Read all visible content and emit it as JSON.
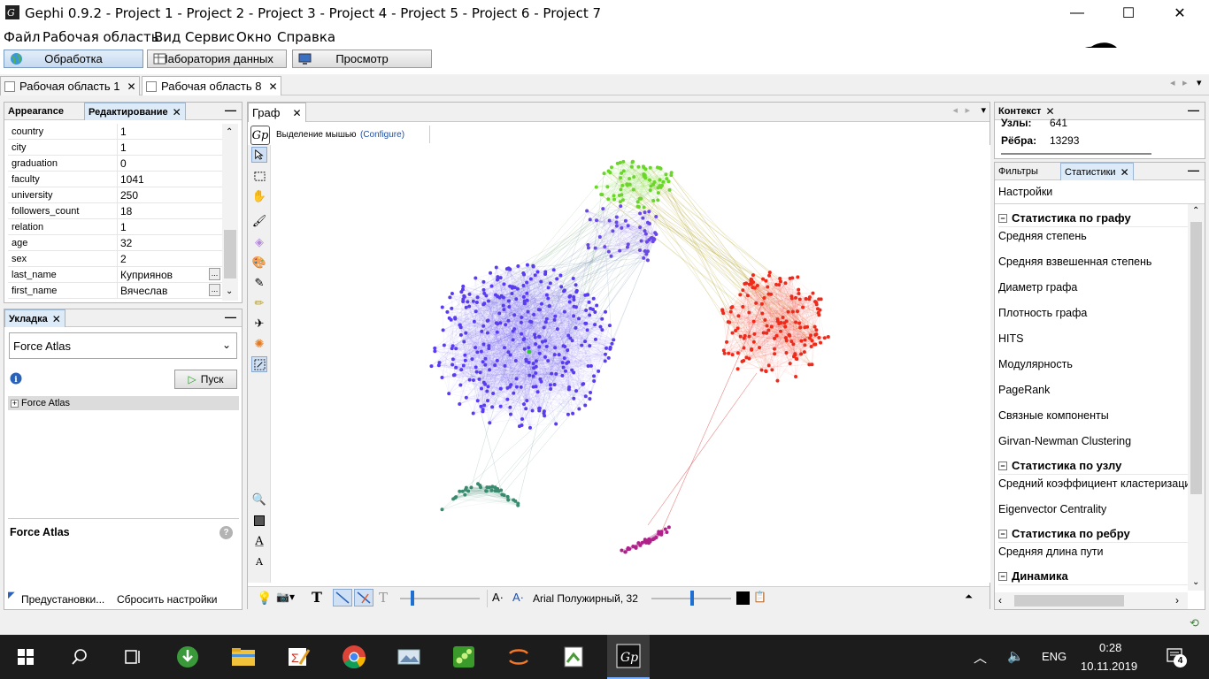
{
  "window": {
    "title": "Gephi 0.9.2 - Project 1 - Project 2 - Project 3 - Project 4 - Project 5 - Project 6 - Project 7",
    "minimize": "—",
    "maximize": "☐",
    "close": "✕"
  },
  "menu": [
    "Файл",
    "Рабочая область",
    "Вид",
    "Сервис",
    "Окно",
    "Справка"
  ],
  "modes": [
    "Обработка",
    "Лаборатория данных",
    "Просмотр"
  ],
  "workspaces": [
    {
      "label": "Рабочая область 1",
      "close": "✕"
    },
    {
      "label": "Рабочая область 8",
      "close": "✕"
    }
  ],
  "left_top_panel": {
    "tabs": [
      "Appearance",
      "Редактирование"
    ],
    "close": "✕",
    "minimize": "—",
    "properties": [
      {
        "key": "country",
        "value": "1"
      },
      {
        "key": "city",
        "value": "1"
      },
      {
        "key": "graduation",
        "value": "0"
      },
      {
        "key": "faculty",
        "value": "1041"
      },
      {
        "key": "university",
        "value": "250"
      },
      {
        "key": "followers_count",
        "value": "18"
      },
      {
        "key": "relation",
        "value": "1"
      },
      {
        "key": "age",
        "value": "32"
      },
      {
        "key": "sex",
        "value": "2"
      },
      {
        "key": "last_name",
        "value": "Куприянов",
        "dots": "..."
      },
      {
        "key": "first_name",
        "value": "Вячеслав",
        "dots": "..."
      }
    ]
  },
  "layout_panel": {
    "tab": "Укладка",
    "close": "✕",
    "minimize": "—",
    "algorithm": "Force Atlas",
    "run_label": "Пуск",
    "tree_item": "Force Atlas",
    "desc_title": "Force Atlas",
    "presets": "Предустановки...",
    "reset": "Сбросить настройки"
  },
  "graph_panel": {
    "tab": "Граф",
    "close": "✕",
    "selection_mode": "Выделение мышью",
    "configure": "(Configure)",
    "font_label": "Arial Полужирный, 32"
  },
  "context_panel": {
    "tab": "Контекст",
    "close": "✕",
    "minimize": "—",
    "nodes_label": "Узлы:",
    "nodes_value": "641",
    "edges_label": "Рёбра:",
    "edges_value": "13293"
  },
  "stats_panel": {
    "tabs": [
      "Фильтры",
      "Статистики"
    ],
    "close": "✕",
    "minimize": "—",
    "settings": "Настройки",
    "sections": [
      {
        "title": "Статистика по графу",
        "items": [
          "Средняя степень",
          "Средняя взвешенная степень",
          "Диаметр графа",
          "Плотность графа",
          "HITS",
          "Модулярность",
          "PageRank",
          "Связные компоненты",
          "Girvan-Newman Clustering"
        ]
      },
      {
        "title": "Статистика по узлу",
        "items": [
          "Средний коэффициент кластеризации",
          "Eigenvector Centrality"
        ]
      },
      {
        "title": "Статистика по ребру",
        "items": [
          "Средняя длина пути"
        ]
      },
      {
        "title": "Динамика",
        "items": []
      }
    ]
  },
  "taskbar": {
    "lang": "ENG",
    "time": "0:28",
    "date": "10.11.2019",
    "notifications": "4"
  },
  "colors": {
    "cluster_blue": "#5a3cf0",
    "cluster_red": "#f02a1a",
    "cluster_green": "#6ad62a",
    "cluster_teal": "#3a8a70",
    "cluster_magenta": "#b0208a",
    "cluster_violet": "#6a48e8"
  }
}
